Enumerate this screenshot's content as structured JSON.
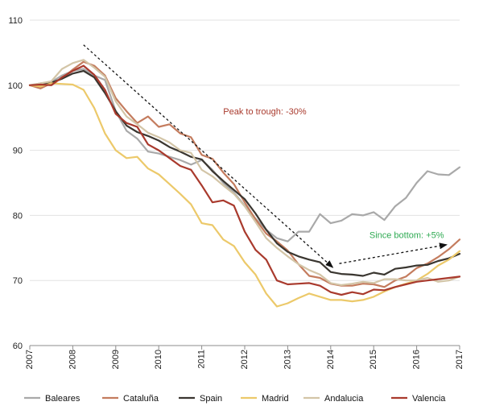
{
  "chart_data": {
    "type": "line",
    "title": "",
    "xlabel": "",
    "ylabel": "",
    "xlim": [
      2007,
      2017
    ],
    "ylim": [
      60,
      110
    ],
    "y_ticks": [
      60,
      70,
      80,
      90,
      100,
      110
    ],
    "x_ticks": [
      2007,
      2008,
      2009,
      2010,
      2011,
      2012,
      2013,
      2014,
      2015,
      2016,
      2017
    ],
    "y_tick_labels": [
      "60",
      "70",
      "80",
      "90",
      "100",
      "110"
    ],
    "x_tick_labels": [
      "2007",
      "2008",
      "2009",
      "2010",
      "2011",
      "2012",
      "2013",
      "2014",
      "2015",
      "2016",
      "2017"
    ],
    "grid": "horizontal",
    "legend_position": "bottom",
    "x": [
      2007.0,
      2007.25,
      2007.5,
      2007.75,
      2008.0,
      2008.25,
      2008.5,
      2008.75,
      2009.0,
      2009.25,
      2009.5,
      2009.75,
      2010.0,
      2010.25,
      2010.5,
      2010.75,
      2011.0,
      2011.25,
      2011.5,
      2011.75,
      2012.0,
      2012.25,
      2012.5,
      2012.75,
      2013.0,
      2013.25,
      2013.5,
      2013.75,
      2014.0,
      2014.25,
      2014.5,
      2014.75,
      2015.0,
      2015.25,
      2015.5,
      2015.75,
      2016.0,
      2016.25,
      2016.5,
      2016.75,
      2017.0
    ],
    "series": [
      {
        "name": "Baleares",
        "color": "#a9a9a9",
        "values": [
          100,
          100.3,
          100.5,
          101.5,
          102.2,
          102.5,
          101.5,
          100.8,
          96.0,
          93.0,
          91.8,
          89.8,
          89.5,
          89.0,
          88.5,
          87.8,
          88.5,
          87.0,
          85.0,
          83.5,
          81.5,
          79.5,
          77.8,
          76.5,
          76.0,
          77.5,
          77.5,
          80.2,
          78.8,
          79.2,
          80.2,
          80.0,
          80.5,
          79.3,
          81.4,
          82.7,
          85.0,
          86.8,
          86.3,
          86.2,
          87.4
        ]
      },
      {
        "name": "Cataluña",
        "color": "#c47c5e",
        "values": [
          100,
          99.5,
          100.3,
          101.0,
          102.4,
          103.6,
          103.0,
          101.5,
          98.0,
          96.0,
          94.2,
          95.2,
          93.6,
          94.0,
          92.6,
          92.0,
          89.3,
          88.7,
          86.6,
          84.8,
          82.0,
          79.4,
          77.2,
          76.0,
          74.6,
          72.5,
          70.7,
          70.4,
          69.5,
          69.2,
          69.2,
          69.5,
          69.4,
          69.0,
          70.0,
          70.6,
          71.9,
          72.6,
          73.6,
          74.8,
          76.3
        ]
      },
      {
        "name": "Spain",
        "color": "#3a3630",
        "values": [
          100,
          100.1,
          100.4,
          101.0,
          101.8,
          102.2,
          101.2,
          98.8,
          96.0,
          93.8,
          92.8,
          92.2,
          91.5,
          90.5,
          89.8,
          89.0,
          88.6,
          86.8,
          85.3,
          83.9,
          82.5,
          80.3,
          77.8,
          75.7,
          74.4,
          73.7,
          73.2,
          72.8,
          71.3,
          71.0,
          70.9,
          70.7,
          71.2,
          70.9,
          71.8,
          72.0,
          72.3,
          72.4,
          73.0,
          73.4,
          74.1
        ]
      },
      {
        "name": "Madrid",
        "color": "#ecc96a",
        "values": [
          100,
          99.8,
          100.3,
          100.2,
          100.1,
          99.3,
          96.5,
          92.6,
          90.0,
          88.8,
          89.0,
          87.2,
          86.3,
          84.8,
          83.3,
          81.7,
          78.8,
          78.5,
          76.3,
          75.3,
          72.8,
          70.9,
          68.0,
          66.0,
          66.5,
          67.3,
          68.0,
          67.5,
          67.0,
          67.0,
          66.8,
          67.0,
          67.5,
          68.3,
          69.0,
          69.5,
          70.0,
          71.0,
          72.3,
          73.2,
          74.5
        ]
      },
      {
        "name": "Andalucia",
        "color": "#d3c5a7",
        "values": [
          100,
          100.3,
          100.6,
          102.5,
          103.4,
          103.9,
          102.7,
          101.3,
          97.5,
          95.2,
          94.0,
          92.7,
          92.0,
          91.2,
          90.0,
          89.6,
          87.0,
          86.0,
          84.6,
          83.3,
          81.4,
          79.0,
          76.5,
          75.0,
          73.7,
          72.5,
          71.6,
          70.9,
          69.6,
          69.3,
          69.5,
          69.8,
          69.6,
          70.2,
          70.2,
          70.0,
          70.0,
          70.4,
          69.8,
          70.0,
          70.6
        ]
      },
      {
        "name": "Valencia",
        "color": "#a93a2d",
        "values": [
          100,
          100.1,
          100.0,
          101.2,
          102.2,
          103.0,
          101.6,
          99.3,
          95.6,
          94.2,
          93.6,
          90.9,
          90.0,
          88.8,
          87.6,
          87.0,
          84.6,
          82.0,
          82.3,
          81.5,
          77.5,
          74.7,
          73.2,
          70.0,
          69.4,
          69.5,
          69.6,
          69.2,
          68.2,
          67.8,
          68.2,
          67.9,
          68.6,
          68.5,
          69.0,
          69.4,
          69.8,
          70.0,
          70.2,
          70.4,
          70.6
        ]
      }
    ],
    "annotations": [
      {
        "text": "Peak to trough: -30%",
        "color": "#a93a2d",
        "from": [
          2008.25,
          106.2
        ],
        "to": [
          2014.05,
          72.0
        ],
        "label_at": [
          2011.5,
          95.5
        ]
      },
      {
        "text": "Since bottom: +5%",
        "color": "#2eaa52",
        "from": [
          2014.2,
          72.6
        ],
        "to": [
          2016.7,
          75.5
        ],
        "label_at": [
          2014.9,
          76.5
        ]
      }
    ]
  }
}
